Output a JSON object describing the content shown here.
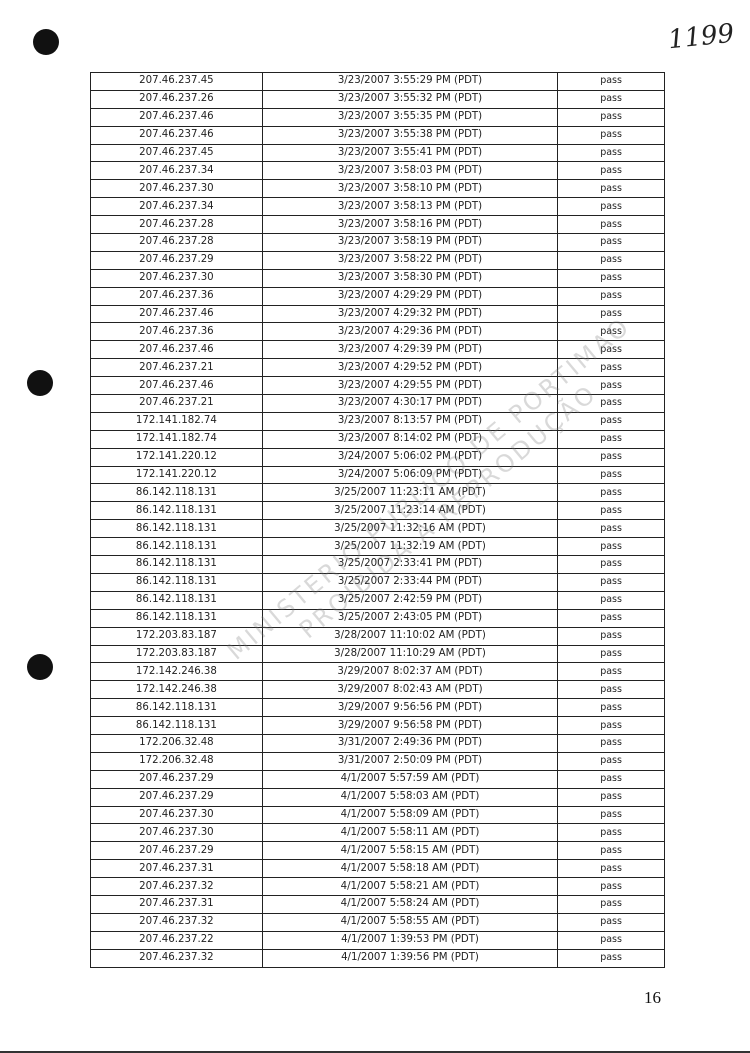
{
  "handwritten_number": "1199",
  "page_number": "16",
  "watermark": {
    "line1": "MINISTERIO PUBLICO DE PORTIMAO",
    "line2": "PROIBIDA A REPRODUÇÃO"
  },
  "rows": [
    [
      "207.46.237.45",
      "3/23/2007 3:55:29 PM (PDT)",
      "pass"
    ],
    [
      "207.46.237.26",
      "3/23/2007 3:55:32 PM (PDT)",
      "pass"
    ],
    [
      "207.46.237.46",
      "3/23/2007 3:55:35 PM (PDT)",
      "pass"
    ],
    [
      "207.46.237.46",
      "3/23/2007 3:55:38 PM (PDT)",
      "pass"
    ],
    [
      "207.46.237.45",
      "3/23/2007 3:55:41 PM (PDT)",
      "pass"
    ],
    [
      "207.46.237.34",
      "3/23/2007 3:58:03 PM (PDT)",
      "pass"
    ],
    [
      "207.46.237.30",
      "3/23/2007 3:58:10 PM (PDT)",
      "pass"
    ],
    [
      "207.46.237.34",
      "3/23/2007 3:58:13 PM (PDT)",
      "pass"
    ],
    [
      "207.46.237.28",
      "3/23/2007 3:58:16 PM (PDT)",
      "pass"
    ],
    [
      "207.46.237.28",
      "3/23/2007 3:58:19 PM (PDT)",
      "pass"
    ],
    [
      "207.46.237.29",
      "3/23/2007 3:58:22 PM (PDT)",
      "pass"
    ],
    [
      "207.46.237.30",
      "3/23/2007 3:58:30 PM (PDT)",
      "pass"
    ],
    [
      "207.46.237.36",
      "3/23/2007 4:29:29 PM (PDT)",
      "pass"
    ],
    [
      "207.46.237.46",
      "3/23/2007 4:29:32 PM (PDT)",
      "pass"
    ],
    [
      "207.46.237.36",
      "3/23/2007 4:29:36 PM (PDT)",
      "pass"
    ],
    [
      "207.46.237.46",
      "3/23/2007 4:29:39 PM (PDT)",
      "pass"
    ],
    [
      "207.46.237.21",
      "3/23/2007 4:29:52 PM (PDT)",
      "pass"
    ],
    [
      "207.46.237.46",
      "3/23/2007 4:29:55 PM (PDT)",
      "pass"
    ],
    [
      "207.46.237.21",
      "3/23/2007 4:30:17 PM (PDT)",
      "pass"
    ],
    [
      "172.141.182.74",
      "3/23/2007 8:13:57 PM (PDT)",
      "pass"
    ],
    [
      "172.141.182.74",
      "3/23/2007 8:14:02 PM (PDT)",
      "pass"
    ],
    [
      "172.141.220.12",
      "3/24/2007 5:06:02 PM (PDT)",
      "pass"
    ],
    [
      "172.141.220.12",
      "3/24/2007 5:06:09 PM (PDT)",
      "pass"
    ],
    [
      "86.142.118.131",
      "3/25/2007 11:23:11 AM (PDT)",
      "pass"
    ],
    [
      "86.142.118.131",
      "3/25/2007 11:23:14 AM (PDT)",
      "pass"
    ],
    [
      "86.142.118.131",
      "3/25/2007 11:32:16 AM (PDT)",
      "pass"
    ],
    [
      "86.142.118.131",
      "3/25/2007 11:32:19 AM (PDT)",
      "pass"
    ],
    [
      "86.142.118.131",
      "3/25/2007 2:33:41 PM (PDT)",
      "pass"
    ],
    [
      "86.142.118.131",
      "3/25/2007 2:33:44 PM (PDT)",
      "pass"
    ],
    [
      "86.142.118.131",
      "3/25/2007 2:42:59 PM (PDT)",
      "pass"
    ],
    [
      "86.142.118.131",
      "3/25/2007 2:43:05 PM (PDT)",
      "pass"
    ],
    [
      "172.203.83.187",
      "3/28/2007 11:10:02 AM (PDT)",
      "pass"
    ],
    [
      "172.203.83.187",
      "3/28/2007 11:10:29 AM (PDT)",
      "pass"
    ],
    [
      "172.142.246.38",
      "3/29/2007 8:02:37 AM (PDT)",
      "pass"
    ],
    [
      "172.142.246.38",
      "3/29/2007 8:02:43 AM (PDT)",
      "pass"
    ],
    [
      "86.142.118.131",
      "3/29/2007 9:56:56 PM (PDT)",
      "pass"
    ],
    [
      "86.142.118.131",
      "3/29/2007 9:56:58 PM (PDT)",
      "pass"
    ],
    [
      "172.206.32.48",
      "3/31/2007 2:49:36 PM (PDT)",
      "pass"
    ],
    [
      "172.206.32.48",
      "3/31/2007 2:50:09 PM (PDT)",
      "pass"
    ],
    [
      "207.46.237.29",
      "4/1/2007 5:57:59 AM (PDT)",
      "pass"
    ],
    [
      "207.46.237.29",
      "4/1/2007 5:58:03 AM (PDT)",
      "pass"
    ],
    [
      "207.46.237.30",
      "4/1/2007 5:58:09 AM (PDT)",
      "pass"
    ],
    [
      "207.46.237.30",
      "4/1/2007 5:58:11 AM (PDT)",
      "pass"
    ],
    [
      "207.46.237.29",
      "4/1/2007 5:58:15 AM (PDT)",
      "pass"
    ],
    [
      "207.46.237.31",
      "4/1/2007 5:58:18 AM (PDT)",
      "pass"
    ],
    [
      "207.46.237.32",
      "4/1/2007 5:58:21 AM (PDT)",
      "pass"
    ],
    [
      "207.46.237.31",
      "4/1/2007 5:58:24 AM (PDT)",
      "pass"
    ],
    [
      "207.46.237.32",
      "4/1/2007 5:58:55 AM (PDT)",
      "pass"
    ],
    [
      "207.46.237.22",
      "4/1/2007 1:39:53 PM (PDT)",
      "pass"
    ],
    [
      "207.46.237.32",
      "4/1/2007 1:39:56 PM (PDT)",
      "pass"
    ]
  ]
}
